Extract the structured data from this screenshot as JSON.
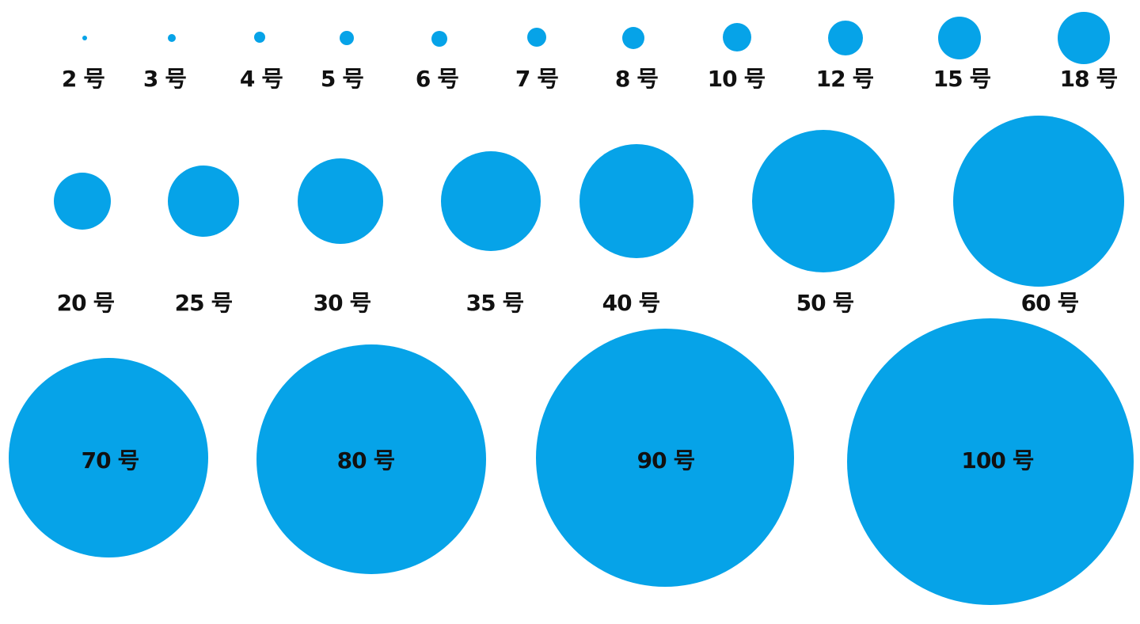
{
  "circle_color": "#06A3E8",
  "sizes": [
    {
      "label": "2 号"
    },
    {
      "label": "3 号"
    },
    {
      "label": "4 号"
    },
    {
      "label": "5 号"
    },
    {
      "label": "6 号"
    },
    {
      "label": "7 号"
    },
    {
      "label": "8 号"
    },
    {
      "label": "10 号"
    },
    {
      "label": "12 号"
    },
    {
      "label": "15 号"
    },
    {
      "label": "18 号"
    },
    {
      "label": "20 号"
    },
    {
      "label": "25 号"
    },
    {
      "label": "30 号"
    },
    {
      "label": "35 号"
    },
    {
      "label": "40 号"
    },
    {
      "label": "50 号"
    },
    {
      "label": "60 号"
    },
    {
      "label": "70 号"
    },
    {
      "label": "80 号"
    },
    {
      "label": "90 号"
    },
    {
      "label": "100 号"
    }
  ]
}
